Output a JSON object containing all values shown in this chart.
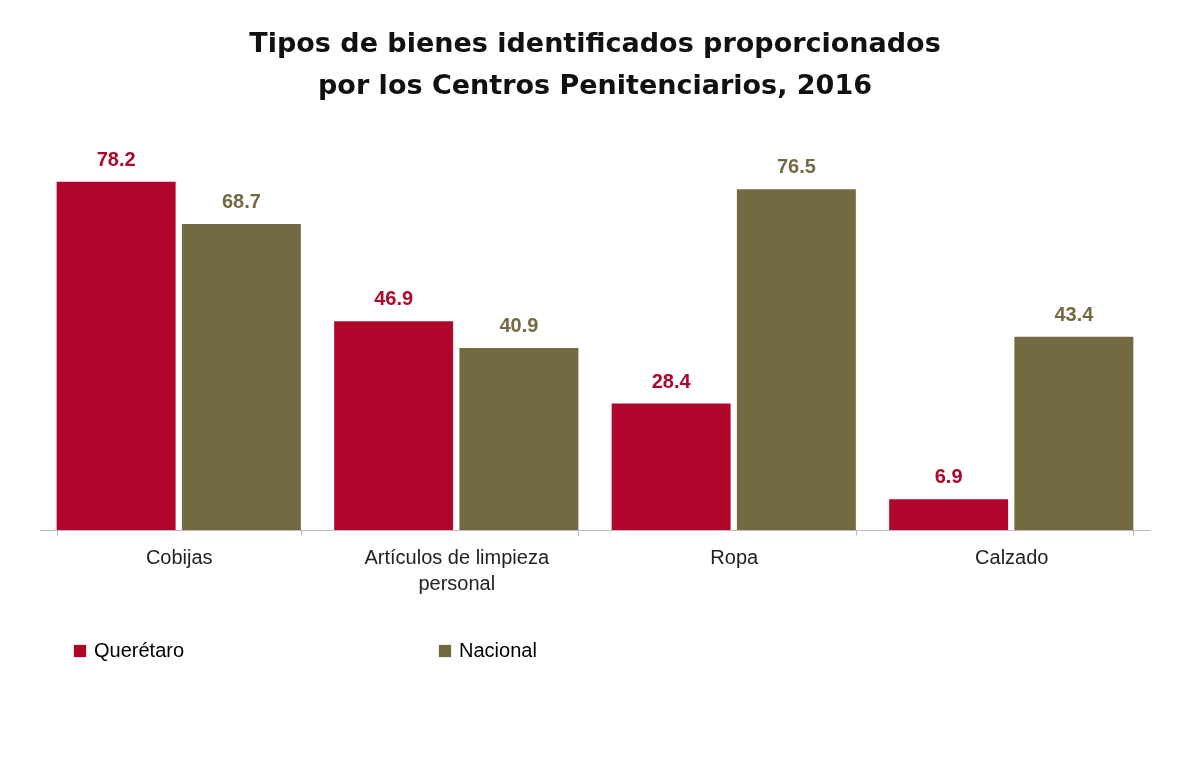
{
  "chart_data": {
    "type": "bar",
    "title": "Tipos de bienes identificados proporcionados\npor los Centros Penitenciarios, 2016",
    "categories": [
      "Cobijas",
      "Artículos de limpieza\npersonal",
      "Ropa",
      "Calzado"
    ],
    "series": [
      {
        "name": "Querétaro",
        "color": "#b0062c",
        "values": [
          78.2,
          46.9,
          28.4,
          6.9
        ]
      },
      {
        "name": "Nacional",
        "color": "#746a42",
        "values": [
          68.7,
          40.9,
          76.5,
          43.4
        ]
      }
    ],
    "data_labels": true,
    "grid": false,
    "legend": "bottom"
  }
}
